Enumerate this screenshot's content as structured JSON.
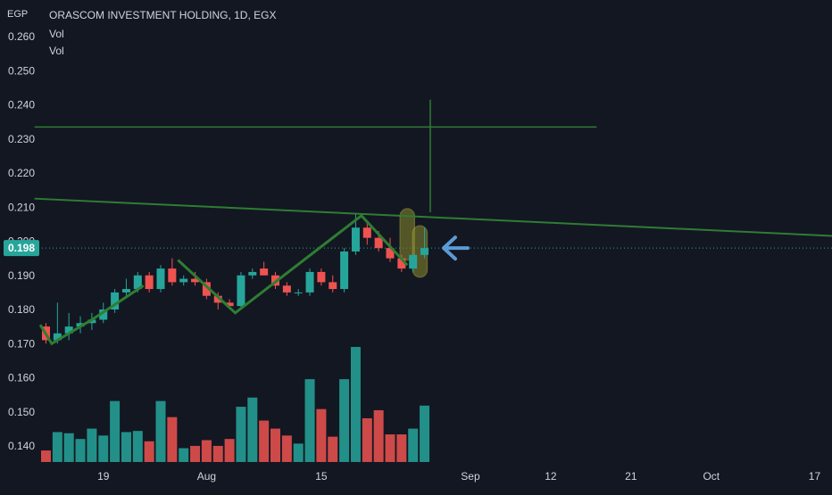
{
  "header": {
    "title": "ORASCOM INVESTMENT HOLDING, 1D, EGX",
    "indicator_1": "Vol",
    "indicator_2": "Vol",
    "currency": "EGP"
  },
  "colors": {
    "background": "#131722",
    "up": "#26a69a",
    "down": "#ef5350",
    "drawing": "#2e7d32",
    "arrow": "#5b9bd5",
    "highlight": "#8a8a2e",
    "price_label_bg": "#26a69a"
  },
  "chart_data": {
    "type": "candlestick",
    "title": "ORASCOM INVESTMENT HOLDING, 1D, EGX",
    "y_unit": "EGP",
    "ylim": [
      0.135,
      0.265
    ],
    "y_ticks": [
      "0.260",
      "0.250",
      "0.240",
      "0.230",
      "0.220",
      "0.210",
      "0.200",
      "0.190",
      "0.180",
      "0.170",
      "0.160",
      "0.150",
      "0.140"
    ],
    "x_ticks": [
      {
        "label": "19",
        "index": 5
      },
      {
        "label": "Aug",
        "index": 14
      },
      {
        "label": "15",
        "index": 24
      },
      {
        "label": "Sep",
        "index": 37
      },
      {
        "label": "12",
        "index": 44
      },
      {
        "label": "21",
        "index": 51
      },
      {
        "label": "Oct",
        "index": 58
      },
      {
        "label": "17",
        "index": 67
      }
    ],
    "last_price": "0.198",
    "candles": [
      {
        "o": 0.175,
        "h": 0.176,
        "l": 0.17,
        "c": 0.171
      },
      {
        "o": 0.171,
        "h": 0.182,
        "l": 0.17,
        "c": 0.173
      },
      {
        "o": 0.173,
        "h": 0.179,
        "l": 0.171,
        "c": 0.175
      },
      {
        "o": 0.175,
        "h": 0.178,
        "l": 0.173,
        "c": 0.176
      },
      {
        "o": 0.176,
        "h": 0.179,
        "l": 0.174,
        "c": 0.177
      },
      {
        "o": 0.177,
        "h": 0.182,
        "l": 0.176,
        "c": 0.18
      },
      {
        "o": 0.18,
        "h": 0.186,
        "l": 0.179,
        "c": 0.185
      },
      {
        "o": 0.185,
        "h": 0.189,
        "l": 0.184,
        "c": 0.186
      },
      {
        "o": 0.186,
        "h": 0.191,
        "l": 0.185,
        "c": 0.19
      },
      {
        "o": 0.19,
        "h": 0.191,
        "l": 0.185,
        "c": 0.186
      },
      {
        "o": 0.186,
        "h": 0.193,
        "l": 0.185,
        "c": 0.192
      },
      {
        "o": 0.192,
        "h": 0.195,
        "l": 0.187,
        "c": 0.188
      },
      {
        "o": 0.188,
        "h": 0.19,
        "l": 0.187,
        "c": 0.189
      },
      {
        "o": 0.189,
        "h": 0.191,
        "l": 0.187,
        "c": 0.188
      },
      {
        "o": 0.188,
        "h": 0.189,
        "l": 0.183,
        "c": 0.184
      },
      {
        "o": 0.184,
        "h": 0.185,
        "l": 0.18,
        "c": 0.182
      },
      {
        "o": 0.182,
        "h": 0.183,
        "l": 0.18,
        "c": 0.181
      },
      {
        "o": 0.181,
        "h": 0.191,
        "l": 0.18,
        "c": 0.19
      },
      {
        "o": 0.19,
        "h": 0.192,
        "l": 0.189,
        "c": 0.191
      },
      {
        "o": 0.192,
        "h": 0.194,
        "l": 0.19,
        "c": 0.19
      },
      {
        "o": 0.19,
        "h": 0.191,
        "l": 0.186,
        "c": 0.187
      },
      {
        "o": 0.187,
        "h": 0.188,
        "l": 0.184,
        "c": 0.185
      },
      {
        "o": 0.185,
        "h": 0.186,
        "l": 0.184,
        "c": 0.185
      },
      {
        "o": 0.185,
        "h": 0.192,
        "l": 0.184,
        "c": 0.191
      },
      {
        "o": 0.191,
        "h": 0.192,
        "l": 0.187,
        "c": 0.188
      },
      {
        "o": 0.188,
        "h": 0.19,
        "l": 0.185,
        "c": 0.186
      },
      {
        "o": 0.186,
        "h": 0.198,
        "l": 0.185,
        "c": 0.197
      },
      {
        "o": 0.197,
        "h": 0.208,
        "l": 0.196,
        "c": 0.204
      },
      {
        "o": 0.204,
        "h": 0.206,
        "l": 0.199,
        "c": 0.201
      },
      {
        "o": 0.201,
        "h": 0.203,
        "l": 0.197,
        "c": 0.198
      },
      {
        "o": 0.198,
        "h": 0.201,
        "l": 0.194,
        "c": 0.195
      },
      {
        "o": 0.195,
        "h": 0.196,
        "l": 0.191,
        "c": 0.192
      },
      {
        "o": 0.192,
        "h": 0.196,
        "l": 0.191,
        "c": 0.196
      },
      {
        "o": 0.196,
        "h": 0.204,
        "l": 0.195,
        "c": 0.198
      }
    ],
    "volume": [
      0.1,
      0.26,
      0.25,
      0.2,
      0.29,
      0.23,
      0.53,
      0.26,
      0.27,
      0.18,
      0.53,
      0.39,
      0.12,
      0.14,
      0.19,
      0.14,
      0.2,
      0.48,
      0.56,
      0.36,
      0.29,
      0.23,
      0.16,
      0.72,
      0.46,
      0.22,
      0.72,
      1.0,
      0.38,
      0.45,
      0.24,
      0.24,
      0.29,
      0.49
    ],
    "annotations": {
      "resistance_horizontal": {
        "price": 0.2335,
        "from_index": -1,
        "to_index": 48
      },
      "descending_trendline": {
        "from": {
          "index": -1,
          "price": 0.2125
        },
        "to": {
          "index": 69,
          "price": 0.2015
        }
      },
      "vertical_marker": {
        "index": 33.5,
        "from_price": 0.2415,
        "to_price": 0.2085
      },
      "zigzag": [
        {
          "index": -0.5,
          "price": 0.1755
        },
        {
          "index": 0.5,
          "price": 0.17
        },
        {
          "index": 4.0,
          "price": 0.177
        },
        {
          "index": 8.5,
          "price": 0.187
        }
      ],
      "zigzag_2": [
        {
          "index": 11.5,
          "price": 0.1945
        },
        {
          "index": 16.5,
          "price": 0.179
        },
        {
          "index": 27.5,
          "price": 0.2075
        },
        {
          "index": 31.5,
          "price": 0.193
        }
      ],
      "highlight_pill_1": {
        "index": 31.5,
        "price_top": 0.2095,
        "price_bottom": 0.1945
      },
      "highlight_pill_2": {
        "index": 32.6,
        "price_top": 0.2045,
        "price_bottom": 0.1895
      },
      "arrow_price": 0.198
    }
  }
}
